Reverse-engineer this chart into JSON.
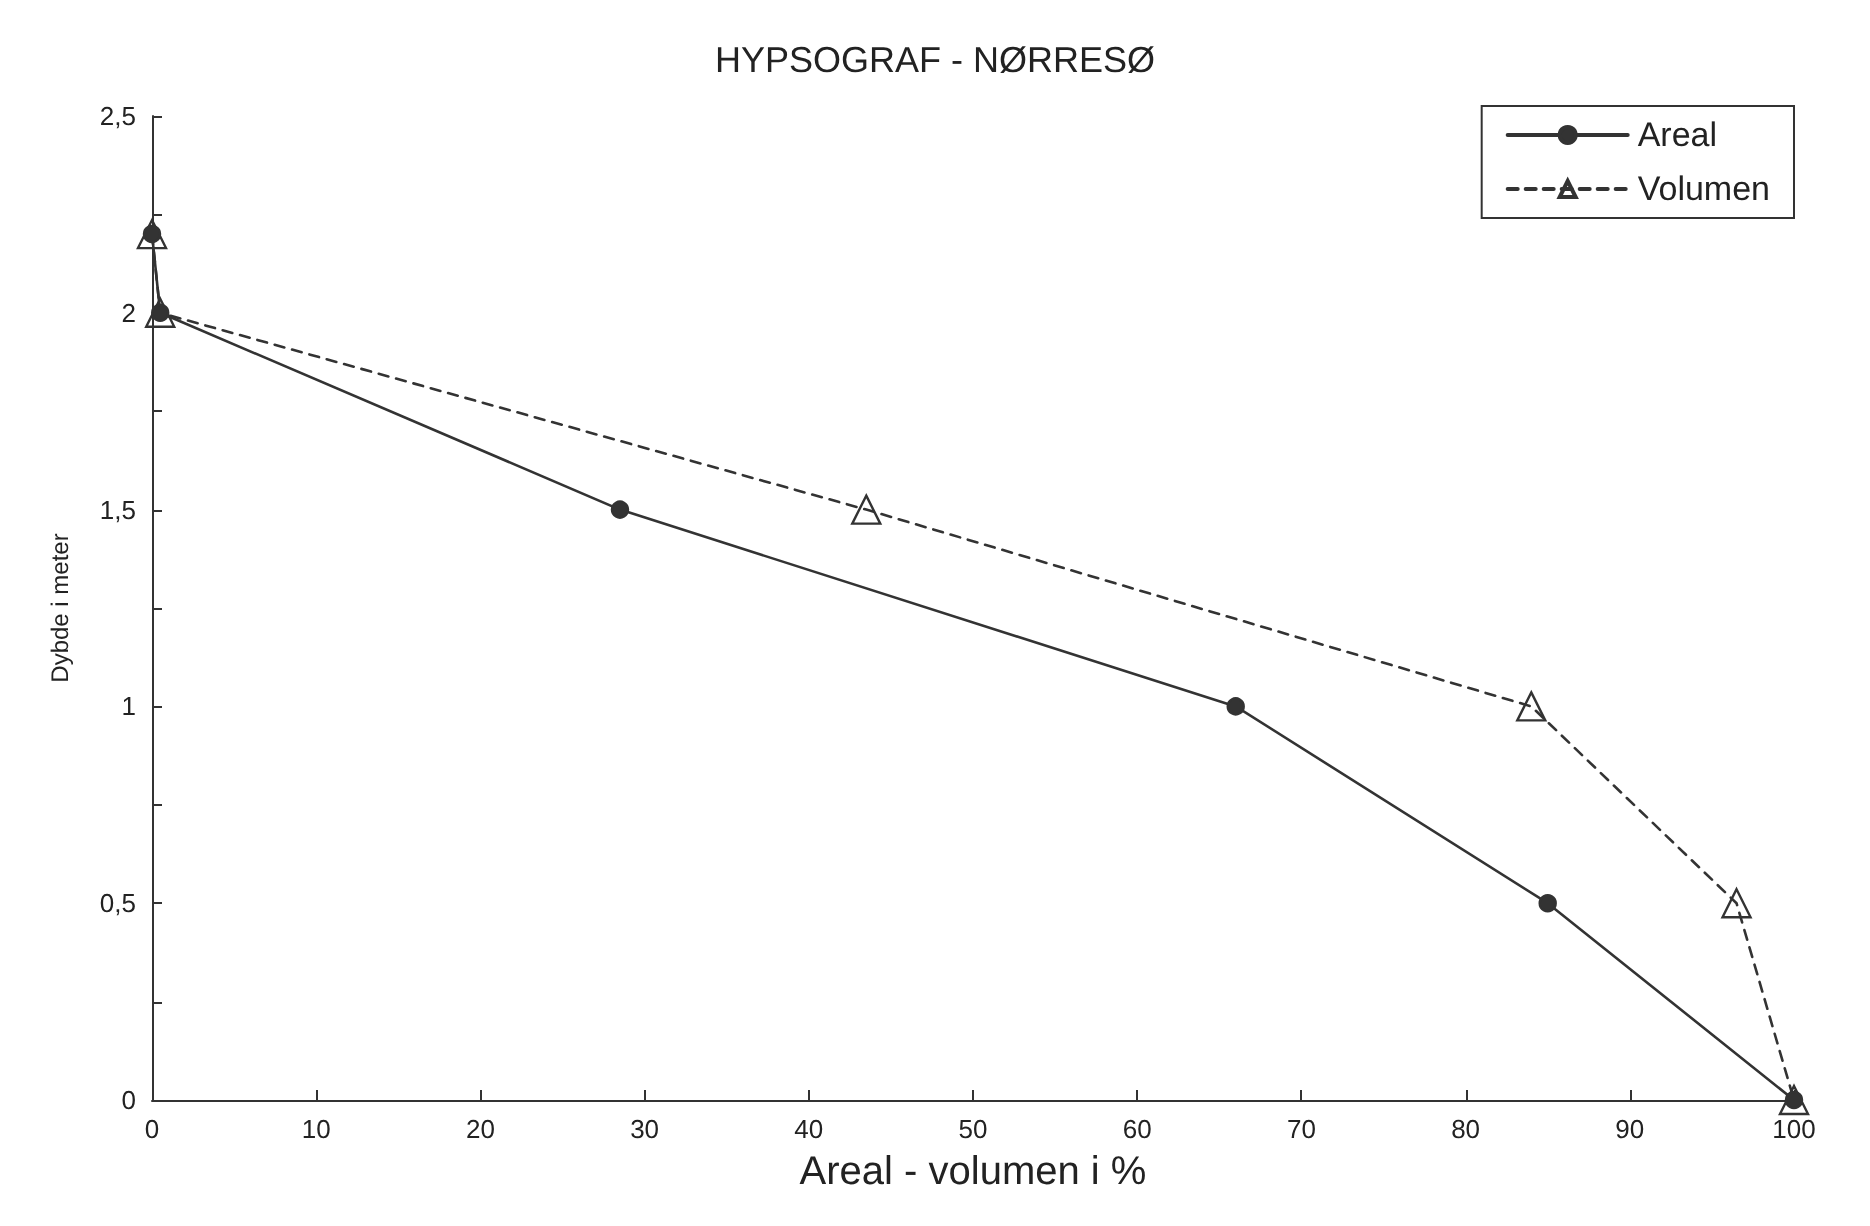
{
  "chart_data": {
    "type": "line",
    "title": "HYPSOGRAF - NØRRESØ",
    "xlabel": "Areal - volumen i %",
    "ylabel": "Dybde i meter",
    "series": [
      {
        "name": "Areal",
        "color": "#333333",
        "marker": "circle",
        "line_style": "solid",
        "x": [
          0,
          0.5,
          28.5,
          66,
          85,
          100
        ],
        "values": [
          2.2,
          2.0,
          1.5,
          1.0,
          0.5,
          0
        ]
      },
      {
        "name": "Volumen",
        "color": "#333333",
        "marker": "triangle",
        "line_style": "dashed",
        "x": [
          0,
          0.5,
          43.5,
          84,
          96.5,
          100
        ],
        "values": [
          2.2,
          2.0,
          1.5,
          1.0,
          0.5,
          0
        ]
      }
    ],
    "xlim": [
      0,
      100
    ],
    "xticks": [
      0,
      10,
      20,
      30,
      40,
      50,
      60,
      70,
      80,
      90,
      100
    ],
    "ylim": [
      0,
      2.5
    ],
    "yticks": [
      0,
      {
        "value": 0.25,
        "label": null
      },
      {
        "value": 0.5,
        "label": "0,5"
      },
      {
        "value": 0.75,
        "label": null
      },
      1,
      {
        "value": 1.25,
        "label": null
      },
      {
        "value": 1.5,
        "label": "1,5"
      },
      {
        "value": 1.75,
        "label": null
      },
      2,
      {
        "value": 2.25,
        "label": null
      },
      {
        "value": 2.5,
        "label": "2,5"
      }
    ],
    "grid": false,
    "legend": "top right"
  }
}
